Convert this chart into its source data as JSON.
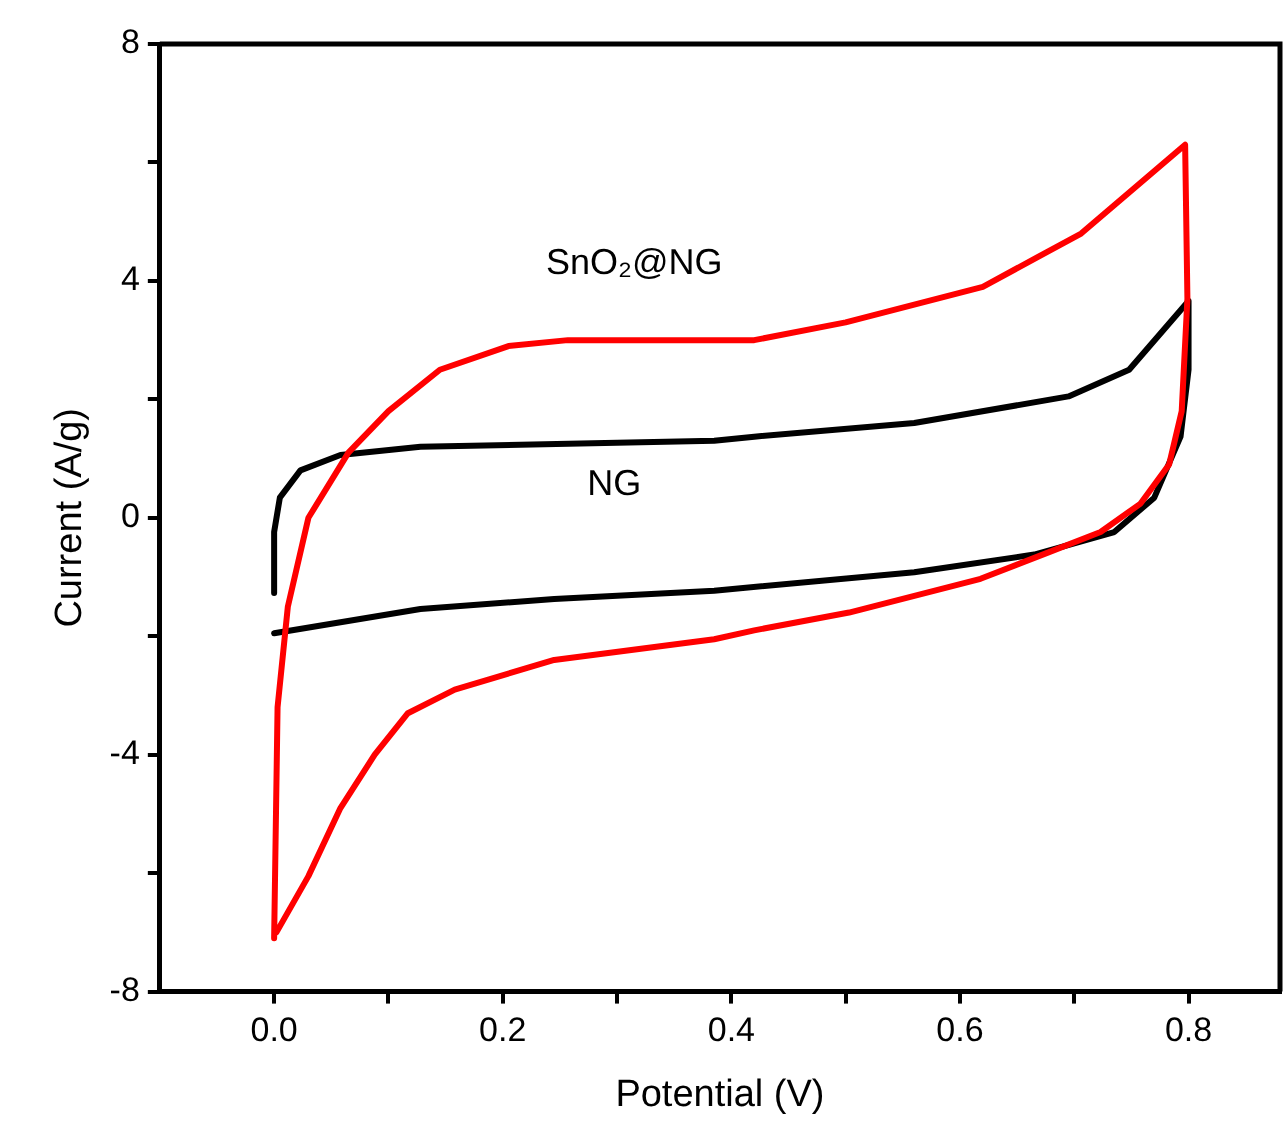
{
  "chart_data": {
    "type": "line",
    "xlabel": "Potential (V)",
    "ylabel": "Current (A/g)",
    "xlim": [
      -0.1,
      0.88
    ],
    "ylim": [
      -8,
      8
    ],
    "xticks": [
      {
        "value": 0,
        "label": "0.0"
      },
      {
        "value": 0.1,
        "label": null
      },
      0.2,
      {
        "value": 0.3,
        "label": null
      },
      0.4,
      {
        "value": 0.5,
        "label": null
      },
      0.6,
      {
        "value": 0.7,
        "label": null
      },
      0.8
    ],
    "yticks": [
      -8,
      {
        "value": -6,
        "label": null
      },
      -4,
      {
        "value": -2,
        "label": null
      },
      0,
      {
        "value": 2,
        "label": null
      },
      4,
      {
        "value": 6,
        "label": null
      },
      8
    ],
    "grid": false,
    "legend": false,
    "series": [
      {
        "name": "SnO₂@NG",
        "color": "#ff0000",
        "x": [
          0,
          0.003,
          0.012,
          0.03,
          0.065,
          0.1,
          0.145,
          0.205,
          0.257,
          0.385,
          0.42,
          0.5,
          0.62,
          0.706,
          0.797,
          0.799,
          0.794,
          0.783,
          0.758,
          0.723,
          0.678,
          0.618,
          0.503,
          0.42,
          0.385,
          0.245,
          0.158,
          0.117,
          0.088,
          0.058,
          0.03,
          0.002
        ],
        "values": [
          -7.1,
          -3.2,
          -1.5,
          0,
          1.1,
          1.8,
          2.5,
          2.9,
          3.0,
          3.0,
          3.0,
          3.3,
          3.9,
          4.8,
          6.3,
          3.7,
          1.8,
          0.9,
          0.24,
          -0.24,
          -0.58,
          -1.03,
          -1.6,
          -1.9,
          -2.05,
          -2.4,
          -2.9,
          -3.3,
          -4.0,
          -4.9,
          -6.05,
          -7.0
        ]
      },
      {
        "name": "NG",
        "color": "#000000",
        "x": [
          0,
          0,
          0.005,
          0.023,
          0.058,
          0.128,
          0.385,
          0.42,
          0.56,
          0.695,
          0.748,
          0.8,
          0.8,
          0.793,
          0.77,
          0.735,
          0.665,
          0.56,
          0.385,
          0.245,
          0.128,
          0
        ],
        "values": [
          -1.27,
          -0.24,
          0.34,
          0.8,
          1.06,
          1.2,
          1.3,
          1.37,
          1.6,
          2.05,
          2.5,
          3.66,
          2.5,
          1.37,
          0.34,
          -0.24,
          -0.62,
          -0.92,
          -1.23,
          -1.37,
          -1.54,
          -1.95
        ]
      }
    ]
  }
}
